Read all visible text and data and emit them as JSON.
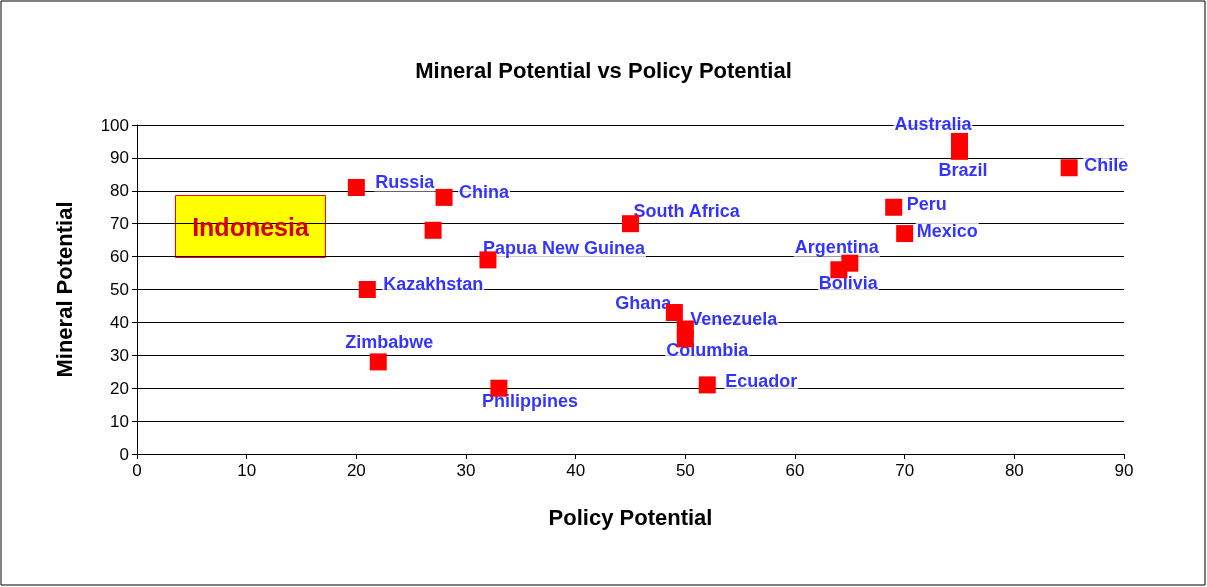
{
  "chart_data": {
    "type": "scatter",
    "title": "Mineral Potential vs Policy Potential",
    "xlabel": "Policy Potential",
    "ylabel": "Mineral Potential",
    "xlim": [
      0,
      90
    ],
    "xticks": [
      0,
      10,
      20,
      30,
      40,
      50,
      60,
      70,
      80,
      90
    ],
    "ylim": [
      0,
      100
    ],
    "yticks": [
      0,
      10,
      20,
      30,
      40,
      50,
      60,
      70,
      80,
      90,
      100
    ],
    "grid": "y",
    "marker": "square",
    "series": [
      {
        "color": "#ff0000",
        "x": [
          20,
          28,
          27,
          32,
          21,
          22,
          33,
          45,
          49,
          50,
          50,
          52,
          64,
          65,
          69,
          70,
          75,
          75,
          85
        ],
        "values": [
          81,
          78,
          68,
          59,
          50,
          28,
          20,
          70,
          43,
          38,
          35,
          21,
          56,
          58,
          75,
          67,
          95,
          92,
          87
        ]
      }
    ],
    "annotations": [
      {
        "text": "Russia",
        "x": 20,
        "y": 81
      },
      {
        "text": "China",
        "x": 28,
        "y": 78
      },
      "Indonesia",
      {
        "text": "Papua New Guinea",
        "x": 32,
        "y": 59
      },
      {
        "text": "Kazakhstan",
        "x": 21,
        "y": 50
      },
      {
        "text": "Zimbabwe",
        "x": 22,
        "y": 28
      },
      {
        "text": "Philippines",
        "x": 33,
        "y": 20
      },
      {
        "text": "South Africa",
        "x": 45,
        "y": 70
      },
      {
        "text": "Ghana",
        "x": 49,
        "y": 43
      },
      {
        "text": "Venezuela",
        "x": 50,
        "y": 38
      },
      {
        "text": "Columbia",
        "x": 50,
        "y": 35
      },
      {
        "text": "Ecuador",
        "x": 52,
        "y": 21
      },
      {
        "text": "Argentina",
        "x": 64,
        "y": 56
      },
      {
        "text": "Bolivia",
        "x": 65,
        "y": 58
      },
      {
        "text": "Peru",
        "x": 69,
        "y": 75
      },
      {
        "text": "Mexico",
        "x": 70,
        "y": 67
      },
      {
        "text": "Australia",
        "x": 75,
        "y": 95
      },
      {
        "text": "Brazil",
        "x": 75,
        "y": 92
      },
      {
        "text": "Chile",
        "x": 85,
        "y": 87
      }
    ]
  }
}
